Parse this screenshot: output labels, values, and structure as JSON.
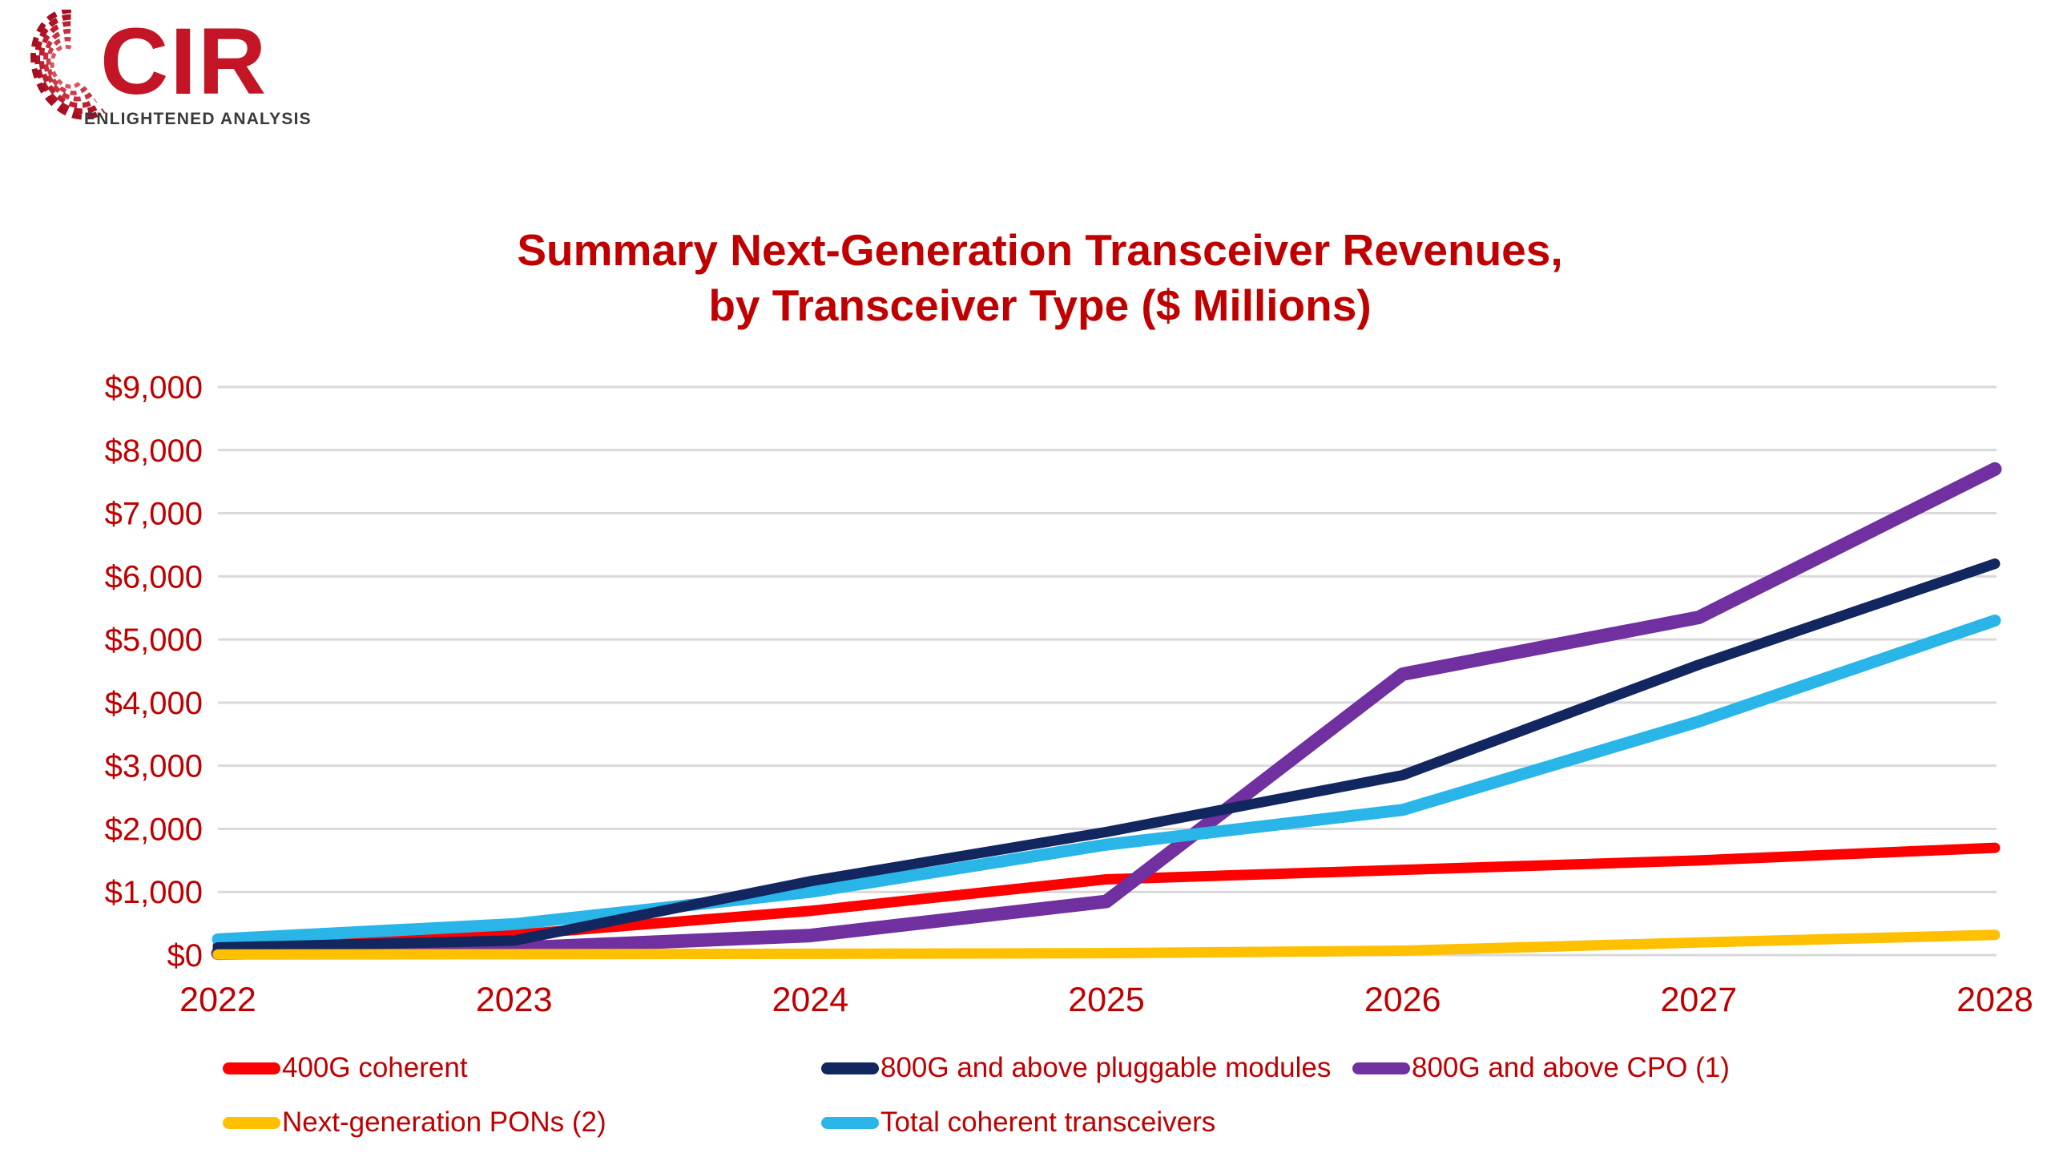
{
  "logo": {
    "brand": "CIR",
    "tagline": "ENLIGHTENED ANALYSIS"
  },
  "title_line1": "Summary Next-Generation Transceiver Revenues,",
  "title_line2": "by Transceiver Type ($ Millions)",
  "colors": {
    "title_text": "#c00000",
    "axis_text": "#c00000",
    "gridline": "#d9d9d9",
    "logo_red": "#c41527",
    "logo_gray": "#3a3a3a"
  },
  "chart_data": {
    "type": "line",
    "title": "Summary Next-Generation Transceiver Revenues, by Transceiver Type ($ Millions)",
    "x": [
      2022,
      2023,
      2024,
      2025,
      2026,
      2027,
      2028
    ],
    "x_tick_labels": [
      "2022",
      "2023",
      "2024",
      "2025",
      "2026",
      "2027",
      "2028"
    ],
    "ylim": [
      0,
      9000
    ],
    "y_tick_step": 1000,
    "y_ticks": [
      0,
      1000,
      2000,
      3000,
      4000,
      5000,
      6000,
      7000,
      8000,
      9000
    ],
    "y_tick_labels": [
      "$0",
      "$1,000",
      "$2,000",
      "$3,000",
      "$4,000",
      "$5,000",
      "$6,000",
      "$7,000",
      "$8,000",
      "$9,000"
    ],
    "grid": true,
    "legend_position": "bottom",
    "series": [
      {
        "name": "400G coherent",
        "color": "#ff0000",
        "width": 13,
        "z": 1,
        "legend_row": 0,
        "legend_col": 0,
        "values": [
          150,
          320,
          700,
          1200,
          1350,
          1500,
          1700
        ]
      },
      {
        "name": "800G and above pluggable modules",
        "color": "#12265f",
        "width": 13,
        "z": 4,
        "legend_row": 0,
        "legend_col": 1,
        "values": [
          120,
          230,
          1170,
          1950,
          2850,
          4600,
          6200
        ]
      },
      {
        "name": "800G and above CPO (1)",
        "color": "#7030a0",
        "width": 17,
        "z": 2,
        "legend_row": 0,
        "legend_col": 2,
        "values": [
          30,
          110,
          310,
          850,
          4450,
          5350,
          7700
        ]
      },
      {
        "name": "Next-generation PONs (2)",
        "color": "#ffc000",
        "width": 13,
        "z": 5,
        "legend_row": 1,
        "legend_col": 0,
        "values": [
          10,
          15,
          20,
          30,
          70,
          200,
          320
        ]
      },
      {
        "name": "Total coherent transceivers",
        "color": "#29b5e8",
        "width": 15,
        "z": 3,
        "legend_row": 1,
        "legend_col": 1,
        "values": [
          250,
          490,
          1000,
          1750,
          2300,
          3700,
          5300
        ]
      }
    ]
  }
}
